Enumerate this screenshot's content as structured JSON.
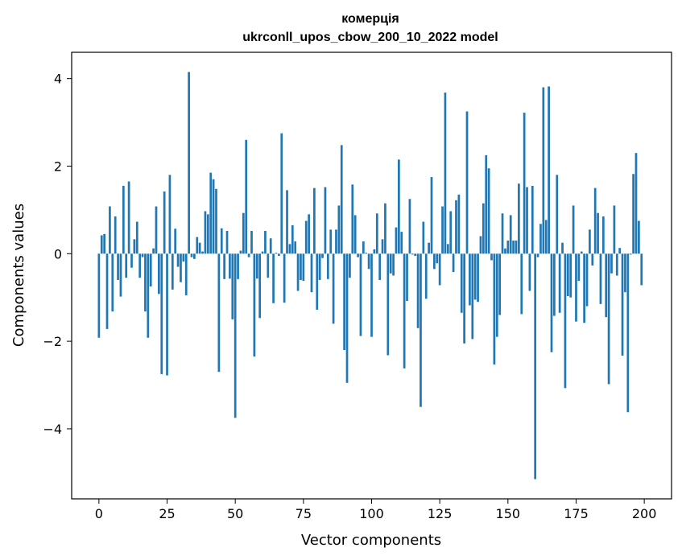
{
  "chart_data": {
    "type": "bar",
    "title": "комерція",
    "subtitle": "ukrconll_upos_cbow_200_10_2022 model",
    "xlabel": "Vector components",
    "ylabel": "Components values",
    "xlim": [
      -10,
      210
    ],
    "ylim": [
      -5.6,
      4.6
    ],
    "xticks": [
      0,
      25,
      50,
      75,
      100,
      125,
      150,
      175,
      200
    ],
    "yticks": [
      -4,
      -2,
      0,
      2,
      4
    ],
    "ytick_labels": [
      "−4",
      "−2",
      "0",
      "2",
      "4"
    ],
    "bar_color": "#1f77b4",
    "grid": false,
    "legend": "none",
    "x": [
      0,
      1,
      2,
      3,
      4,
      5,
      6,
      7,
      8,
      9,
      10,
      11,
      12,
      13,
      14,
      15,
      16,
      17,
      18,
      19,
      20,
      21,
      22,
      23,
      24,
      25,
      26,
      27,
      28,
      29,
      30,
      31,
      32,
      33,
      34,
      35,
      36,
      37,
      38,
      39,
      40,
      41,
      42,
      43,
      44,
      45,
      46,
      47,
      48,
      49,
      50,
      51,
      52,
      53,
      54,
      55,
      56,
      57,
      58,
      59,
      60,
      61,
      62,
      63,
      64,
      65,
      66,
      67,
      68,
      69,
      70,
      71,
      72,
      73,
      74,
      75,
      76,
      77,
      78,
      79,
      80,
      81,
      82,
      83,
      84,
      85,
      86,
      87,
      88,
      89,
      90,
      91,
      92,
      93,
      94,
      95,
      96,
      97,
      98,
      99,
      100,
      101,
      102,
      103,
      104,
      105,
      106,
      107,
      108,
      109,
      110,
      111,
      112,
      113,
      114,
      115,
      116,
      117,
      118,
      119,
      120,
      121,
      122,
      123,
      124,
      125,
      126,
      127,
      128,
      129,
      130,
      131,
      132,
      133,
      134,
      135,
      136,
      137,
      138,
      139,
      140,
      141,
      142,
      143,
      144,
      145,
      146,
      147,
      148,
      149,
      150,
      151,
      152,
      153,
      154,
      155,
      156,
      157,
      158,
      159,
      160,
      161,
      162,
      163,
      164,
      165,
      166,
      167,
      168,
      169,
      170,
      171,
      172,
      173,
      174,
      175,
      176,
      177,
      178,
      179,
      180,
      181,
      182,
      183,
      184,
      185,
      186,
      187,
      188,
      189,
      190,
      191,
      192,
      193,
      194,
      195,
      196,
      197,
      198,
      199
    ],
    "values": [
      -1.92,
      0.42,
      0.45,
      -1.72,
      1.08,
      -1.32,
      0.85,
      -0.6,
      -0.98,
      1.55,
      -0.55,
      1.65,
      -0.32,
      0.33,
      0.73,
      -0.55,
      -0.08,
      -1.32,
      -1.92,
      -0.75,
      0.12,
      1.08,
      -0.92,
      -2.75,
      1.42,
      -2.78,
      1.8,
      -0.82,
      0.57,
      -0.3,
      -0.65,
      -0.18,
      -0.95,
      4.15,
      -0.08,
      -0.12,
      0.38,
      0.25,
      0.05,
      0.97,
      0.9,
      1.85,
      1.7,
      1.48,
      -2.7,
      0.58,
      -0.58,
      0.52,
      -0.57,
      -1.5,
      -3.75,
      -0.58,
      0.07,
      0.93,
      2.6,
      -0.08,
      0.52,
      -2.35,
      -0.57,
      -1.47,
      0.05,
      0.52,
      -0.55,
      0.35,
      -1.13,
      0.02,
      -0.05,
      2.75,
      -1.12,
      1.45,
      0.22,
      0.65,
      0.28,
      -0.85,
      -0.6,
      -0.62,
      0.75,
      0.9,
      -0.88,
      1.5,
      -1.28,
      -0.6,
      -0.1,
      1.52,
      -0.58,
      0.55,
      -1.6,
      0.55,
      1.1,
      2.48,
      -2.2,
      -2.95,
      -0.55,
      1.58,
      0.88,
      -0.08,
      -1.88,
      0.28,
      0.02,
      -0.35,
      -1.9,
      0.1,
      0.92,
      -0.6,
      0.33,
      1.15,
      -2.32,
      -0.45,
      -0.5,
      0.6,
      2.15,
      0.5,
      -2.62,
      -1.08,
      1.25,
      -0.02,
      -0.05,
      -1.7,
      -3.5,
      0.73,
      -1.03,
      0.25,
      1.75,
      -0.35,
      -0.22,
      -0.72,
      1.08,
      3.68,
      0.22,
      0.97,
      -0.42,
      1.22,
      1.35,
      -1.35,
      -2.05,
      3.25,
      -1.18,
      -1.95,
      -1.05,
      -1.1,
      0.4,
      1.15,
      2.25,
      1.95,
      -0.15,
      -2.53,
      -1.9,
      -1.4,
      0.92,
      0.12,
      0.3,
      0.88,
      0.3,
      0.3,
      1.6,
      -1.38,
      3.22,
      1.52,
      -0.85,
      1.55,
      -5.15,
      -0.08,
      0.68,
      3.8,
      0.77,
      3.82,
      -2.25,
      -1.42,
      1.8,
      -1.35,
      0.25,
      -3.07,
      -0.97,
      -1.0,
      1.1,
      -1.55,
      -0.62,
      0.05,
      -1.58,
      -1.2,
      0.55,
      -0.27,
      1.5,
      0.93,
      -1.15,
      0.85,
      -1.45,
      -2.98,
      -0.45,
      1.1,
      -0.5,
      0.13,
      -2.33,
      -0.88,
      -3.62,
      -0.02,
      1.82,
      2.3,
      0.75,
      -0.72
    ]
  }
}
